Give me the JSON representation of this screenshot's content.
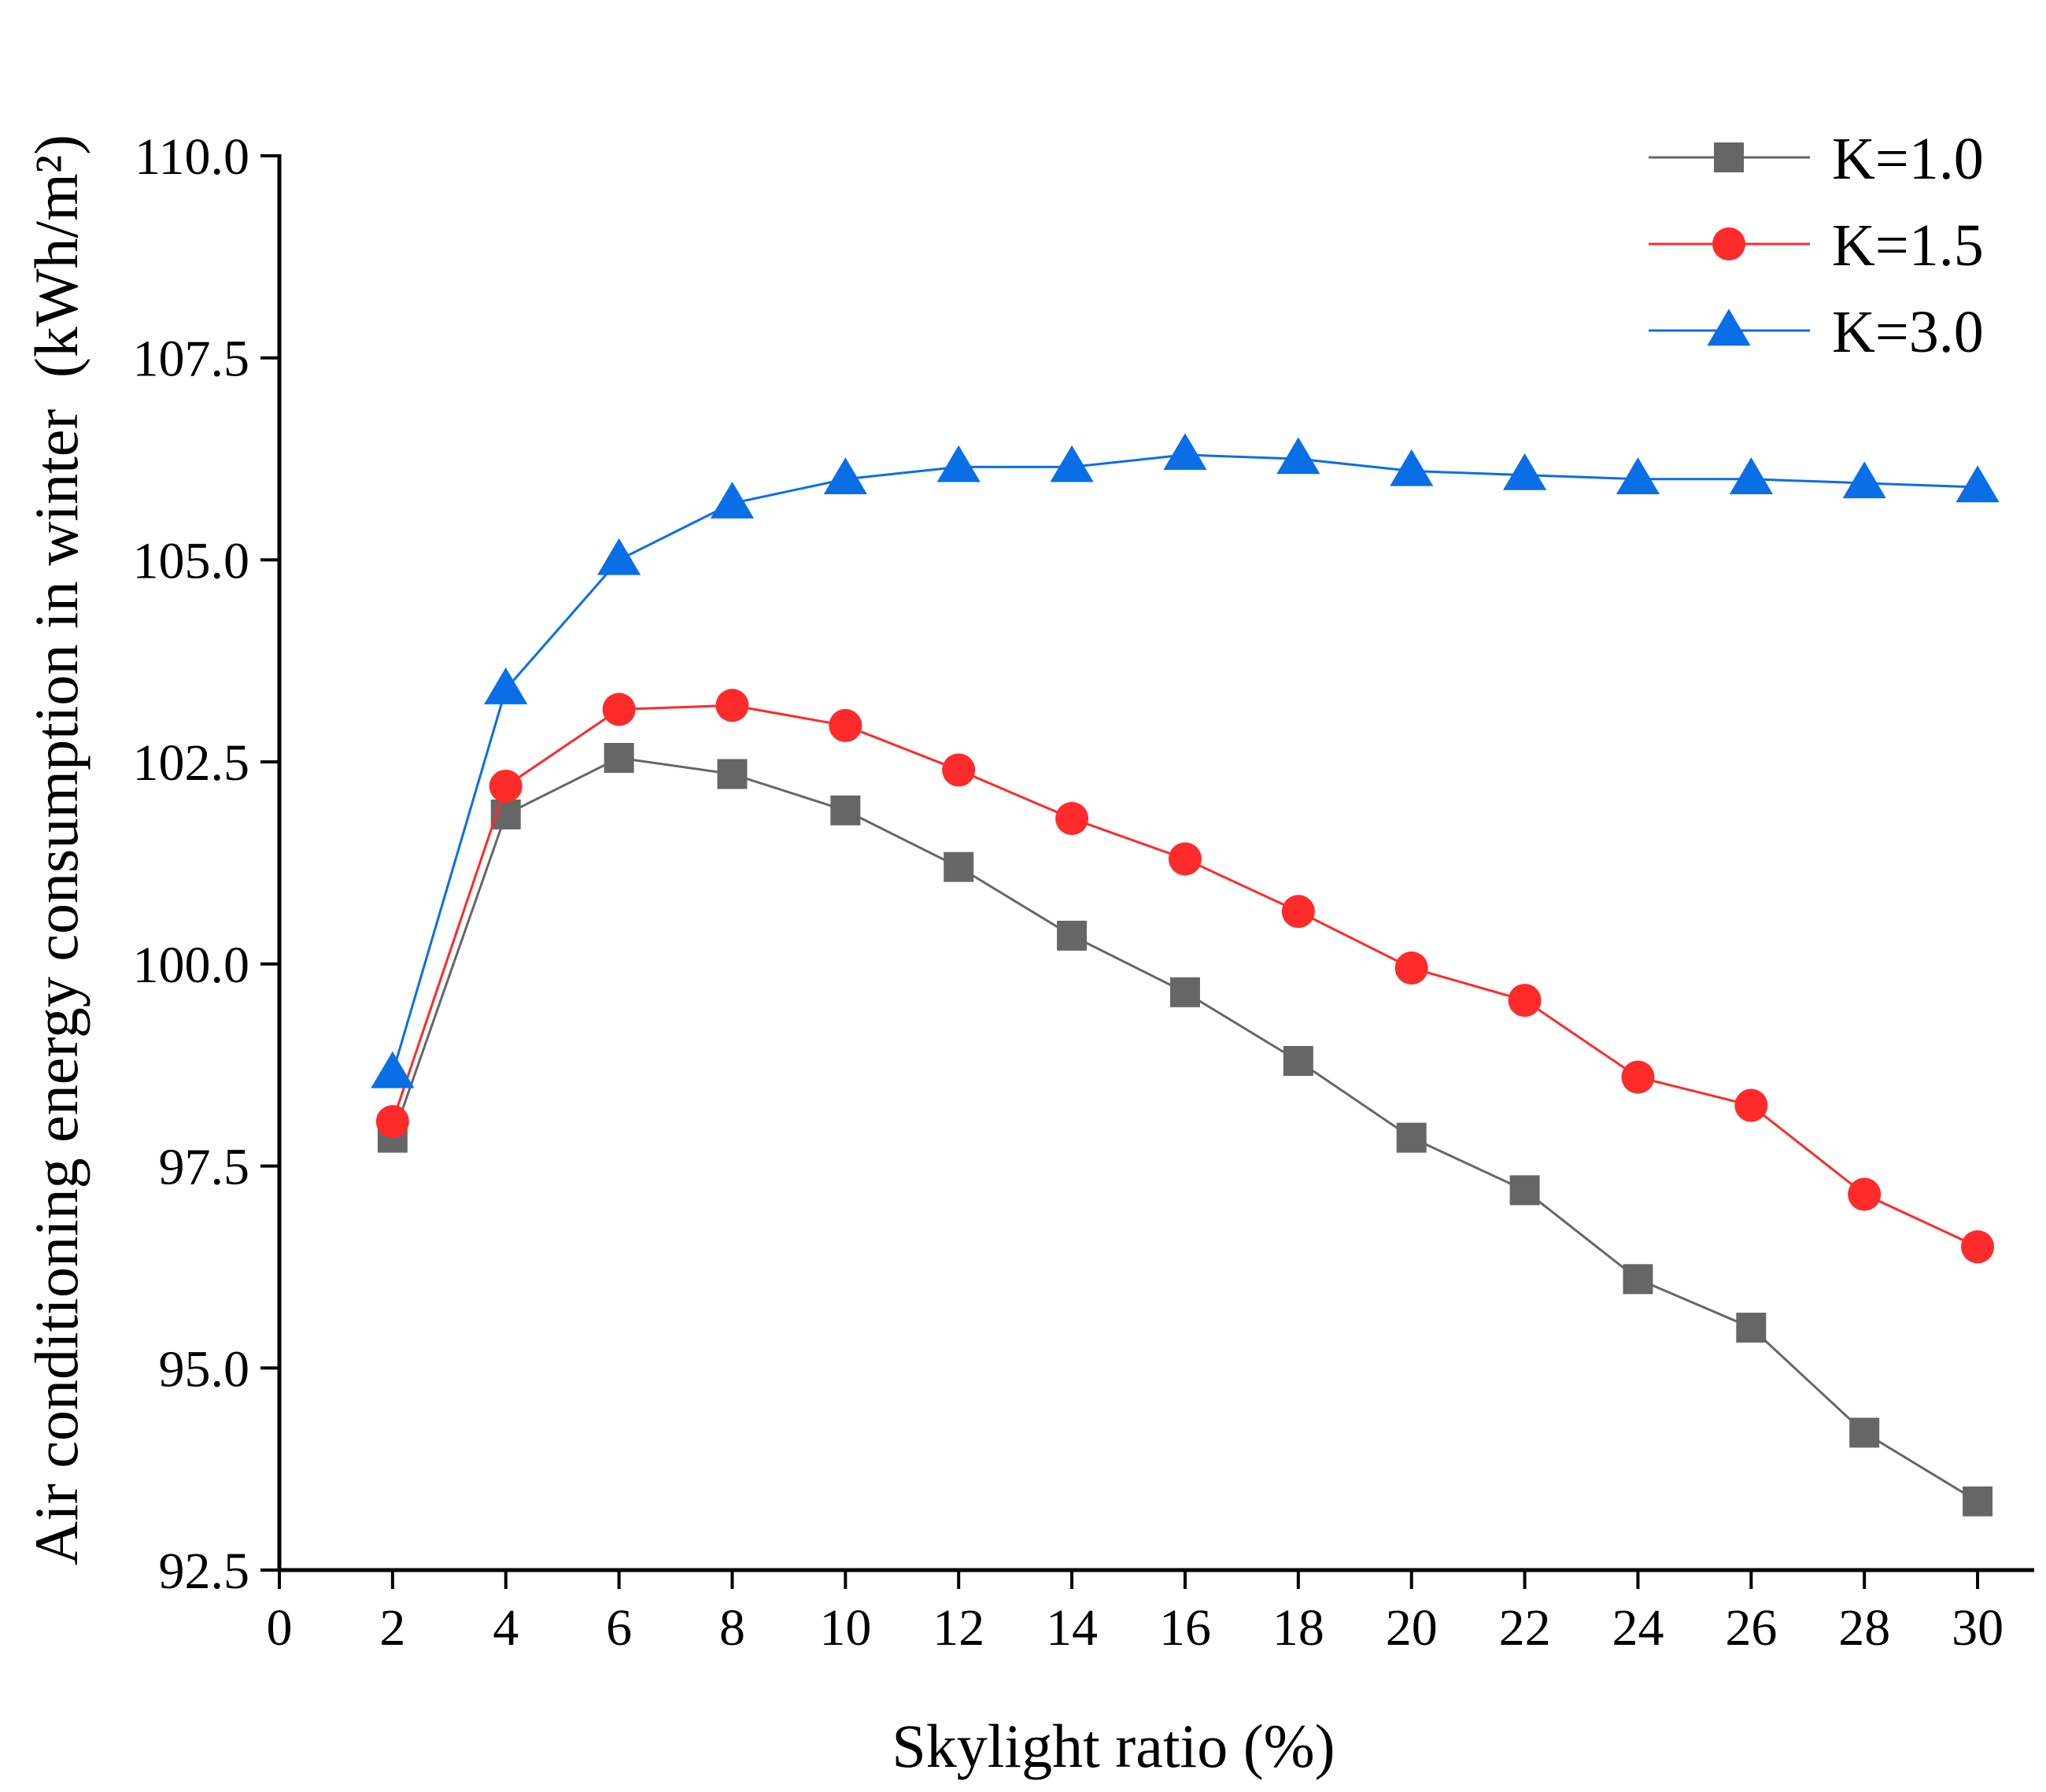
{
  "chart_data": {
    "type": "line",
    "title": "",
    "xlabel": "Skylight ratio (%)",
    "ylabel": "Air conditioning energy consumption in winter",
    "ylabel_unit": "(kWh/m²)",
    "xlim": [
      0,
      31
    ],
    "ylim": [
      92.5,
      110.0
    ],
    "x_ticks": [
      "0",
      "2",
      "4",
      "6",
      "8",
      "10",
      "12",
      "14",
      "16",
      "18",
      "20",
      "22",
      "24",
      "26",
      "28",
      "30"
    ],
    "y_ticks": [
      "92.5",
      "95.0",
      "97.5",
      "100.0",
      "102.5",
      "105.0",
      "107.5",
      "110.0"
    ],
    "x": [
      2,
      4,
      6,
      8,
      10,
      12,
      14,
      16,
      18,
      20,
      22,
      24,
      26,
      28,
      30
    ],
    "grid": false,
    "legend_position": "top-right",
    "series": [
      {
        "name": "K=1.0",
        "marker": "square",
        "color": "#666666",
        "values": [
          97.85,
          101.85,
          102.55,
          102.35,
          101.9,
          101.2,
          100.35,
          99.65,
          98.8,
          97.85,
          97.2,
          96.1,
          95.5,
          94.2,
          93.35
        ]
      },
      {
        "name": "K=1.5",
        "marker": "circle",
        "color": "#ff2a2a",
        "values": [
          98.05,
          102.2,
          103.15,
          103.2,
          102.95,
          102.4,
          101.8,
          101.3,
          100.65,
          99.95,
          99.55,
          98.6,
          98.25,
          97.15,
          96.5
        ]
      },
      {
        "name": "K=3.0",
        "marker": "triangle",
        "color": "#0a6ee6",
        "values": [
          98.65,
          103.4,
          105.0,
          105.7,
          106.0,
          106.15,
          106.15,
          106.3,
          106.25,
          106.1,
          106.05,
          106.0,
          106.0,
          105.95,
          105.9
        ]
      }
    ]
  }
}
